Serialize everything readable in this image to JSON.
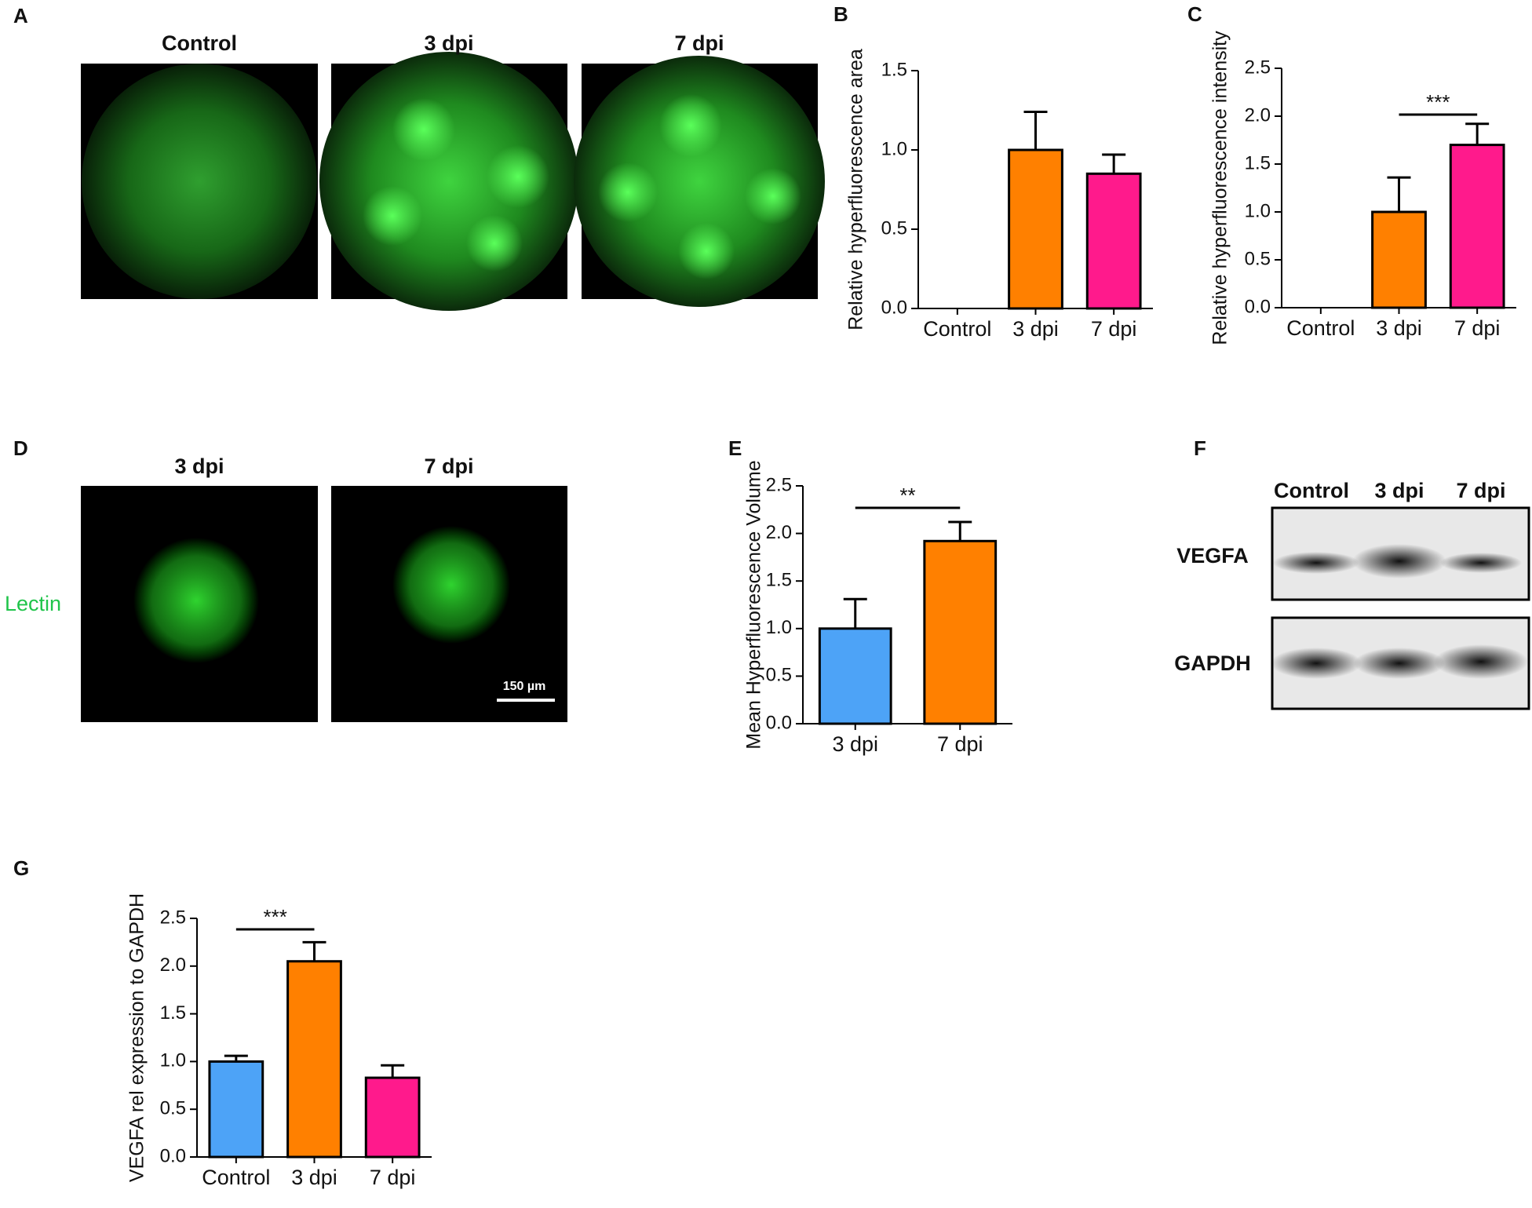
{
  "panel_labels": [
    "A",
    "B",
    "C",
    "D",
    "E",
    "F",
    "G"
  ],
  "panel_a": {
    "titles": [
      "Control",
      "3 dpi",
      "7 dpi"
    ]
  },
  "panel_d": {
    "titles": [
      "3 dpi",
      "7 dpi"
    ],
    "stain": "Lectin",
    "scale_bar": "150 µm"
  },
  "panel_f": {
    "lanes": [
      "Control",
      "3 dpi",
      "7 dpi"
    ],
    "proteins": [
      "VEGFA",
      "GAPDH"
    ]
  },
  "chart_data": [
    {
      "type": "bar",
      "y_label": "Relative hyperfluorescence area",
      "categories": [
        "Control",
        "3 dpi",
        "7 dpi"
      ],
      "values": [
        0,
        1.0,
        0.85
      ],
      "errors": [
        null,
        0.24,
        0.12
      ],
      "colors": [
        "#ff8000",
        "#ff8000",
        "#ff1a8c"
      ],
      "ylim": [
        0,
        1.5
      ],
      "yticks": [
        {
          "value": 0,
          "label": "0.0"
        },
        0.5,
        {
          "value": 1,
          "label": "1.0"
        },
        1.5
      ]
    },
    {
      "type": "bar",
      "y_label": "Relative  hyperfluorescence intensity",
      "categories": [
        "Control",
        "3 dpi",
        "7 dpi"
      ],
      "values": [
        0,
        1.0,
        1.7
      ],
      "errors": [
        null,
        0.36,
        0.22
      ],
      "colors": [
        "#ff8000",
        "#ff8000",
        "#ff1a8c"
      ],
      "ylim": [
        0,
        2.5
      ],
      "yticks": [
        {
          "value": 0,
          "label": "0.0"
        },
        0.5,
        {
          "value": 1,
          "label": "1.0"
        },
        1.5,
        {
          "value": 2,
          "label": "2.0"
        },
        2.5
      ],
      "annotations": [
        {
          "text": "***",
          "between": [
            1,
            2
          ]
        }
      ]
    },
    {
      "type": "bar",
      "y_label": "Mean Hyperfluorescence Volume",
      "categories": [
        "3 dpi",
        "7 dpi"
      ],
      "values": [
        1.0,
        1.92
      ],
      "errors": [
        0.31,
        0.2
      ],
      "colors": [
        "#4da3f7",
        "#ff8000"
      ],
      "ylim": [
        0,
        2.5
      ],
      "yticks": [
        {
          "value": 0,
          "label": "0.0"
        },
        0.5,
        {
          "value": 1,
          "label": "1.0"
        },
        1.5,
        {
          "value": 2,
          "label": "2.0"
        },
        2.5
      ],
      "annotations": [
        {
          "text": "**",
          "between": [
            0,
            1
          ]
        }
      ]
    },
    {
      "type": "bar",
      "y_label": "VEGFA rel expression to GAPDH",
      "categories": [
        "Control",
        "3 dpi",
        "7 dpi"
      ],
      "values": [
        1.0,
        2.05,
        0.83
      ],
      "errors": [
        0.06,
        0.2,
        0.13
      ],
      "colors": [
        "#4da3f7",
        "#ff8000",
        "#ff1a8c"
      ],
      "ylim": [
        0,
        2.5
      ],
      "yticks": [
        {
          "value": 0,
          "label": "0.0"
        },
        0.5,
        {
          "value": 1,
          "label": "1.0"
        },
        1.5,
        {
          "value": 2,
          "label": "2.0"
        },
        2.5
      ],
      "annotations": [
        {
          "text": "***",
          "between": [
            0,
            1
          ]
        }
      ]
    }
  ]
}
